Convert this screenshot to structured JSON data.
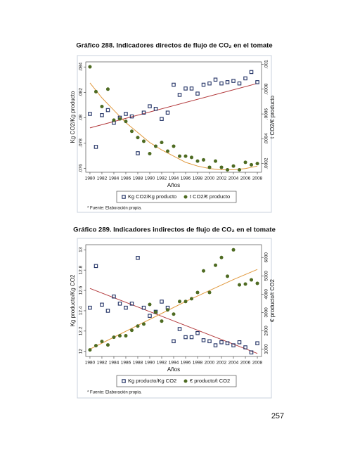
{
  "chart_data": [
    {
      "type": "scatter",
      "title": "Gráfico 288. Indicadores directos de flujo de CO₂ en el tomate",
      "ylabel": "Kg CO2/Kg producto",
      "y2label": "t CO2/€ producto",
      "xlabel": "Años",
      "note": "* Fuente: Elaboración propia.",
      "x": [
        1980,
        1981,
        1982,
        1983,
        1984,
        1985,
        1986,
        1987,
        1988,
        1989,
        1990,
        1991,
        1992,
        1993,
        1994,
        1995,
        1996,
        1997,
        1998,
        1999,
        2000,
        2001,
        2002,
        2003,
        2004,
        2005,
        2006,
        2007,
        2008
      ],
      "xlim": [
        1979.3,
        2008.7
      ],
      "xticks": [
        1980,
        1982,
        1984,
        1986,
        1988,
        1990,
        1992,
        1994,
        1996,
        1998,
        2000,
        2002,
        2004,
        2006,
        2008
      ],
      "ylim": [
        0.0757,
        0.0844
      ],
      "yticks": [
        {
          "value": 0.076,
          "label": ".076"
        },
        {
          "value": 0.078,
          "label": ".078"
        },
        {
          "value": 0.08,
          "label": ".08"
        },
        {
          "value": 0.082,
          "label": ".082"
        },
        {
          "value": 0.084,
          "label": ".084"
        }
      ],
      "y2lim": [
        0.00013,
        0.00102
      ],
      "y2ticks": [
        {
          "value": 0.0002,
          "label": ".0002"
        },
        {
          "value": 0.0004,
          "label": ".0004"
        },
        {
          "value": 0.0006,
          "label": ".0006"
        },
        {
          "value": 0.0008,
          "label": ".0008"
        },
        {
          "value": 0.001,
          "label": ".001"
        }
      ],
      "series": [
        {
          "name": "Kg CO2/Kg producto",
          "color": "#1f2f63",
          "marker": "square",
          "values": [
            0.0803,
            0.0777,
            0.0802,
            0.0806,
            0.0796,
            0.08,
            0.0803,
            0.0801,
            0.0772,
            0.0804,
            0.0809,
            0.0807,
            0.0799,
            0.0804,
            0.0826,
            0.0818,
            0.0823,
            0.0823,
            0.0819,
            0.0826,
            0.0827,
            0.083,
            0.0827,
            0.0828,
            0.0829,
            0.0827,
            0.0831,
            0.0836,
            0.0828
          ]
        },
        {
          "name": "t CO2/€ producto",
          "color": "#4e6b22",
          "marker": "circle",
          "axis": "y2",
          "values": [
            0.00098,
            0.00078,
            0.00066,
            0.0008,
            0.00055,
            0.00056,
            0.00054,
            0.00046,
            0.00041,
            0.00038,
            0.00028,
            0.00034,
            0.00037,
            0.0003,
            0.00034,
            0.00026,
            0.00026,
            0.00025,
            0.00022,
            0.00023,
            0.00017,
            0.00022,
            0.00017,
            0.00015,
            0.00018,
            0.00015,
            0.00021,
            0.00019,
            0.0002
          ]
        }
      ],
      "trends": [
        {
          "color": "#b2373a",
          "x": [
            1980,
            2008
          ],
          "values": [
            0.0792,
            0.0827
          ]
        },
        {
          "color": "#e0983c",
          "axis": "y2",
          "x": [
            1980,
            1982,
            1984,
            1986,
            1988,
            1990,
            1992,
            1994,
            1996,
            1998,
            2000,
            2002,
            2004,
            2006,
            2008
          ],
          "values": [
            0.00085,
            0.00073,
            0.00063,
            0.00053,
            0.00045,
            0.00037,
            0.00031,
            0.00026,
            0.00021,
            0.00018,
            0.00016,
            0.00015,
            0.00015,
            0.00016,
            0.00018
          ]
        }
      ]
    },
    {
      "type": "scatter",
      "title": "Gráfico 289. Indicadores indirectos de flujo de CO₂ en el tomate",
      "ylabel": "Kg producto/Kg CO2",
      "y2label": "€ producto/t CO2",
      "xlabel": "Años",
      "note": "* Fuente: Elaboración propia.",
      "x": [
        1980,
        1981,
        1982,
        1983,
        1984,
        1985,
        1986,
        1987,
        1988,
        1989,
        1990,
        1991,
        1992,
        1993,
        1994,
        1995,
        1996,
        1997,
        1998,
        1999,
        2000,
        2001,
        2002,
        2003,
        2004,
        2005,
        2006,
        2007,
        2008
      ],
      "xlim": [
        1979.3,
        2008.7
      ],
      "xticks": [
        1980,
        1982,
        1984,
        1986,
        1988,
        1990,
        1992,
        1994,
        1996,
        1998,
        2000,
        2002,
        2004,
        2006,
        2008
      ],
      "ylim": [
        11.95,
        13.05
      ],
      "yticks": [
        12,
        12.2,
        12.4,
        12.6,
        12.8,
        13
      ],
      "y2lim": [
        600,
        6700
      ],
      "y2ticks": [
        1000,
        2000,
        3000,
        4000,
        5000,
        6000
      ],
      "series": [
        {
          "name": "Kg producto/Kg CO2",
          "color": "#1f2f63",
          "marker": "square",
          "values": [
            12.43,
            12.84,
            12.46,
            12.4,
            12.54,
            12.47,
            12.43,
            12.47,
            12.92,
            12.43,
            12.35,
            12.39,
            12.49,
            12.43,
            12.1,
            12.22,
            12.14,
            12.14,
            12.18,
            12.11,
            12.1,
            12.06,
            12.09,
            12.08,
            12.06,
            12.09,
            12.04,
            11.99,
            12.08
          ]
        },
        {
          "name": "€ producto/t CO2",
          "color": "#4e6b22",
          "marker": "circle",
          "axis": "y2",
          "values": [
            960,
            1190,
            1420,
            1230,
            1650,
            1730,
            1730,
            2030,
            2260,
            2370,
            3440,
            3020,
            2530,
            3140,
            2910,
            3600,
            3600,
            3750,
            4090,
            5270,
            4090,
            5580,
            6000,
            4980,
            6420,
            4510,
            4550,
            4780,
            4590
          ]
        }
      ],
      "trends": [
        {
          "color": "#b2373a",
          "x": [
            1980,
            2008
          ],
          "values": [
            12.62,
            11.98
          ]
        },
        {
          "color": "#e0983c",
          "axis": "y2",
          "x": [
            1980,
            1984,
            1988,
            1992,
            1996,
            2000,
            2004,
            2008
          ],
          "values": [
            1000,
            1650,
            2300,
            2950,
            3600,
            4200,
            4800,
            5350
          ]
        }
      ]
    }
  ],
  "page_number": 257
}
